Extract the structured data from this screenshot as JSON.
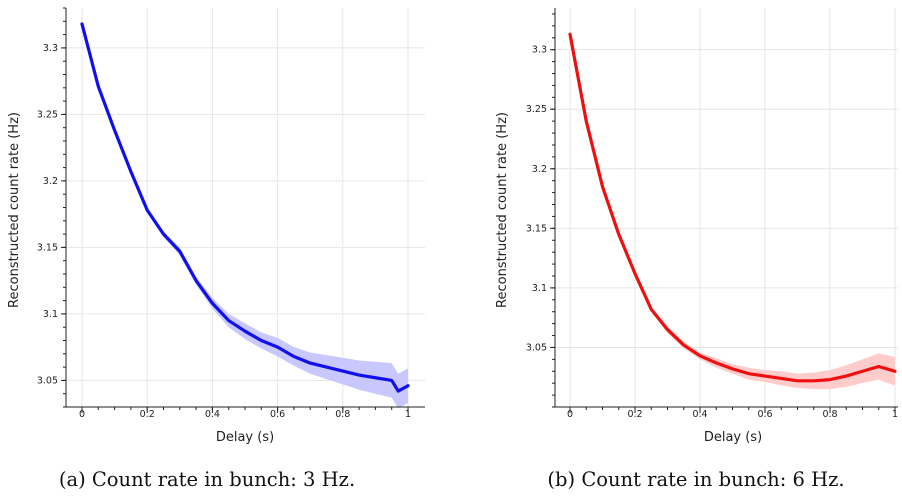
{
  "chart_data": [
    {
      "type": "line",
      "caption": "(a) Count rate in bunch: 3 Hz.",
      "xlabel": "Delay (s)",
      "ylabel": "Reconstructed count rate (Hz)",
      "xlim": [
        0,
        1
      ],
      "ylim": [
        3.03,
        3.33
      ],
      "xticks": [
        0,
        0.2,
        0.4,
        0.6,
        0.8,
        1
      ],
      "xtick_labels": [
        "0",
        "0.2",
        "0.4",
        "0.6",
        "0.8",
        "1"
      ],
      "yticks": [
        3.05,
        3.1,
        3.15,
        3.2,
        3.25,
        3.3
      ],
      "ytick_labels": [
        "3.05",
        "3.1",
        "3.15",
        "3.2",
        "3.25",
        "3.3"
      ],
      "grid": true,
      "color": "#1010ee",
      "band_color": "#c8c8ff",
      "series": [
        {
          "x": [
            0,
            0.05,
            0.1,
            0.15,
            0.2,
            0.25,
            0.3,
            0.35,
            0.4,
            0.45,
            0.5,
            0.55,
            0.6,
            0.65,
            0.7,
            0.75,
            0.8,
            0.85,
            0.9,
            0.95,
            0.97,
            1.0
          ],
          "y": [
            3.318,
            3.271,
            3.238,
            3.207,
            3.178,
            3.16,
            3.147,
            3.125,
            3.108,
            3.095,
            3.087,
            3.08,
            3.075,
            3.068,
            3.063,
            3.06,
            3.057,
            3.054,
            3.052,
            3.05,
            3.042,
            3.046
          ],
          "band": [
            0.001,
            0.002,
            0.002,
            0.002,
            0.002,
            0.002,
            0.003,
            0.003,
            0.004,
            0.005,
            0.006,
            0.006,
            0.007,
            0.007,
            0.008,
            0.009,
            0.01,
            0.011,
            0.012,
            0.013,
            0.013,
            0.013
          ]
        }
      ]
    },
    {
      "type": "line",
      "caption": "(b) Count rate in bunch: 6 Hz.",
      "xlabel": "Delay (s)",
      "ylabel": "Reconstructed count rate (Hz)",
      "xlim": [
        0,
        1
      ],
      "ylim": [
        3.0,
        3.335
      ],
      "xticks": [
        0,
        0.2,
        0.4,
        0.6,
        0.8,
        1
      ],
      "xtick_labels": [
        "0",
        "0.2",
        "0.4",
        "0.6",
        "0.8",
        "1"
      ],
      "yticks": [
        3.05,
        3.1,
        3.15,
        3.2,
        3.25,
        3.3
      ],
      "ytick_labels": [
        "3.05",
        "3.1",
        "3.15",
        "3.2",
        "3.25",
        "3.3"
      ],
      "grid": true,
      "color": "#ee1010",
      "band_color": "#ffcccc",
      "series": [
        {
          "x": [
            0,
            0.05,
            0.1,
            0.15,
            0.2,
            0.25,
            0.3,
            0.35,
            0.4,
            0.45,
            0.5,
            0.55,
            0.6,
            0.65,
            0.7,
            0.75,
            0.8,
            0.85,
            0.9,
            0.95,
            1.0
          ],
          "y": [
            3.313,
            3.24,
            3.185,
            3.145,
            3.112,
            3.082,
            3.065,
            3.052,
            3.043,
            3.037,
            3.032,
            3.028,
            3.026,
            3.024,
            3.022,
            3.022,
            3.023,
            3.026,
            3.03,
            3.034,
            3.03
          ],
          "band": [
            0.001,
            0.002,
            0.002,
            0.002,
            0.002,
            0.002,
            0.003,
            0.003,
            0.003,
            0.004,
            0.004,
            0.005,
            0.005,
            0.006,
            0.006,
            0.007,
            0.008,
            0.009,
            0.01,
            0.011,
            0.012
          ]
        }
      ]
    }
  ]
}
